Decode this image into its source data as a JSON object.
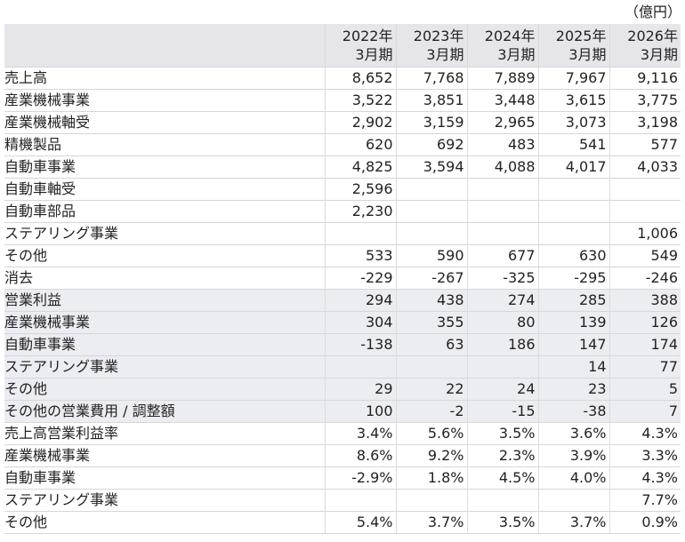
{
  "unit": "（億円）",
  "years": [
    {
      "line1": "2022年",
      "line2": "3月期"
    },
    {
      "line1": "2023年",
      "line2": "3月期"
    },
    {
      "line1": "2024年",
      "line2": "3月期"
    },
    {
      "line1": "2025年",
      "line2": "3月期"
    },
    {
      "line1": "2026年",
      "line2": "3月期"
    }
  ],
  "rows": [
    {
      "label": "売上高",
      "level": 0,
      "shade": false,
      "values": [
        "8,652",
        "7,768",
        "7,889",
        "7,967",
        "9,116"
      ]
    },
    {
      "label": "産業機械事業",
      "level": 1,
      "shade": false,
      "values": [
        "3,522",
        "3,851",
        "3,448",
        "3,615",
        "3,775"
      ]
    },
    {
      "label": "産業機械軸受",
      "level": 2,
      "shade": false,
      "values": [
        "2,902",
        "3,159",
        "2,965",
        "3,073",
        "3,198"
      ]
    },
    {
      "label": "精機製品",
      "level": 2,
      "shade": false,
      "values": [
        "620",
        "692",
        "483",
        "541",
        "577"
      ]
    },
    {
      "label": "自動車事業",
      "level": 1,
      "shade": false,
      "values": [
        "4,825",
        "3,594",
        "4,088",
        "4,017",
        "4,033"
      ]
    },
    {
      "label": "自動車軸受",
      "level": 2,
      "shade": false,
      "values": [
        "2,596",
        "",
        "",
        "",
        ""
      ]
    },
    {
      "label": "自動車部品",
      "level": 2,
      "shade": false,
      "values": [
        "2,230",
        "",
        "",
        "",
        ""
      ]
    },
    {
      "label": "ステアリング事業",
      "level": 1,
      "shade": false,
      "values": [
        "",
        "",
        "",
        "",
        "1,006"
      ]
    },
    {
      "label": "その他",
      "level": 1,
      "shade": false,
      "values": [
        "533",
        "590",
        "677",
        "630",
        "549"
      ]
    },
    {
      "label": "消去",
      "level": 1,
      "shade": false,
      "values": [
        "-229",
        "-267",
        "-325",
        "-295",
        "-246"
      ]
    },
    {
      "label": "営業利益",
      "level": 0,
      "shade": true,
      "values": [
        "294",
        "438",
        "274",
        "285",
        "388"
      ]
    },
    {
      "label": "産業機械事業",
      "level": 1,
      "shade": true,
      "values": [
        "304",
        "355",
        "80",
        "139",
        "126"
      ]
    },
    {
      "label": "自動車事業",
      "level": 1,
      "shade": true,
      "values": [
        "-138",
        "63",
        "186",
        "147",
        "174"
      ]
    },
    {
      "label": "ステアリング事業",
      "level": 1,
      "shade": true,
      "values": [
        "",
        "",
        "",
        "14",
        "77"
      ]
    },
    {
      "label": "その他",
      "level": 1,
      "shade": true,
      "values": [
        "29",
        "22",
        "24",
        "23",
        "5"
      ]
    },
    {
      "label": "その他の営業費用 / 調整額",
      "level": 1,
      "shade": true,
      "values": [
        "100",
        "-2",
        "-15",
        "-38",
        "7"
      ]
    },
    {
      "label": "売上高営業利益率",
      "level": 0,
      "shade": false,
      "values": [
        "3.4%",
        "5.6%",
        "3.5%",
        "3.6%",
        "4.3%"
      ]
    },
    {
      "label": "産業機械事業",
      "level": 1,
      "shade": false,
      "values": [
        "8.6%",
        "9.2%",
        "2.3%",
        "3.9%",
        "3.3%"
      ]
    },
    {
      "label": "自動車事業",
      "level": 1,
      "shade": false,
      "values": [
        "-2.9%",
        "1.8%",
        "4.5%",
        "4.0%",
        "4.3%"
      ]
    },
    {
      "label": "ステアリング事業",
      "level": 1,
      "shade": false,
      "values": [
        "",
        "",
        "",
        "",
        "7.7%"
      ]
    },
    {
      "label": "その他",
      "level": 1,
      "shade": false,
      "values": [
        "5.4%",
        "3.7%",
        "3.5%",
        "3.7%",
        "0.9%"
      ]
    }
  ]
}
